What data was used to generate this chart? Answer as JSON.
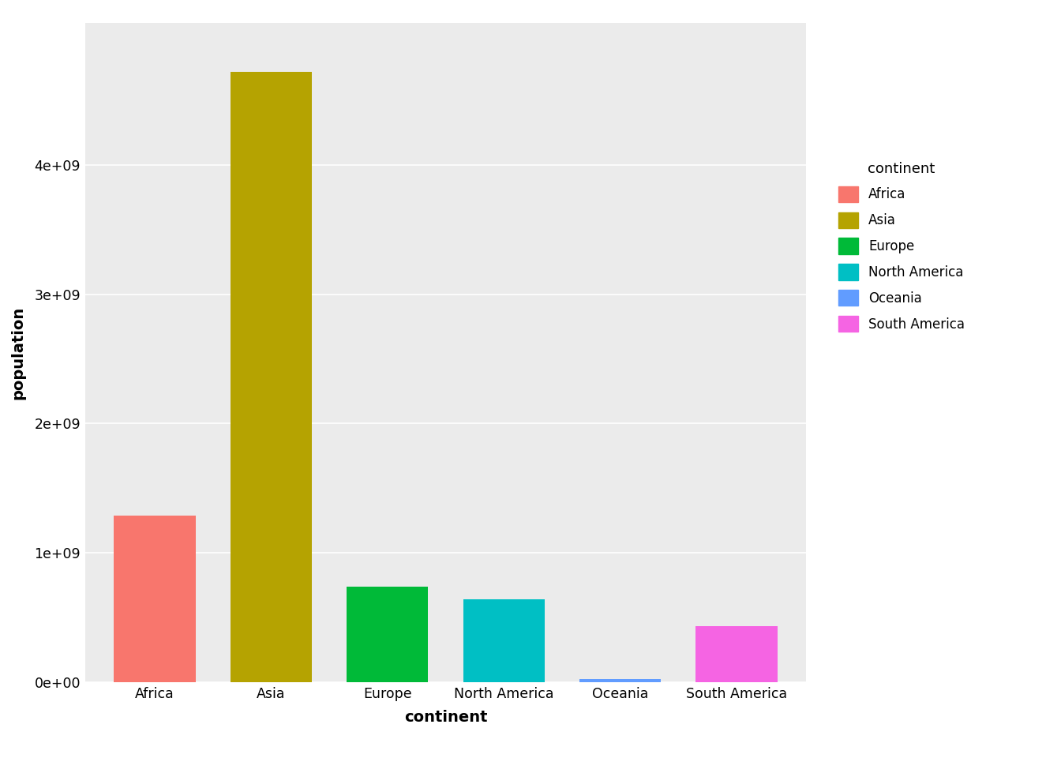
{
  "categories": [
    "Africa",
    "Asia",
    "Europe",
    "North America",
    "Oceania",
    "South America"
  ],
  "values": [
    1290000000.0,
    4720000000.0,
    740000000.0,
    640000000.0,
    24000000.0,
    435000000.0
  ],
  "bar_colors": [
    "#F8766D",
    "#B5A301",
    "#00BA38",
    "#00BFC4",
    "#619CFF",
    "#F564E3"
  ],
  "legend_colors": [
    "#F8766D",
    "#B5A301",
    "#00BA38",
    "#00BFC4",
    "#619CFF",
    "#F564E3"
  ],
  "title": "",
  "xlabel": "continent",
  "ylabel": "population",
  "ylim_max": 5100000000.0,
  "yticks": [
    0,
    1000000000.0,
    2000000000.0,
    3000000000.0,
    4000000000.0
  ],
  "ytick_labels": [
    "0e+00",
    "1e+09",
    "2e+09",
    "3e+09",
    "4e+09"
  ],
  "legend_title": "continent",
  "legend_labels": [
    "Africa",
    "Asia",
    "Europe",
    "North America",
    "Oceania",
    "South America"
  ],
  "bg_color": "#EBEBEB",
  "grid_color": "#FFFFFF"
}
